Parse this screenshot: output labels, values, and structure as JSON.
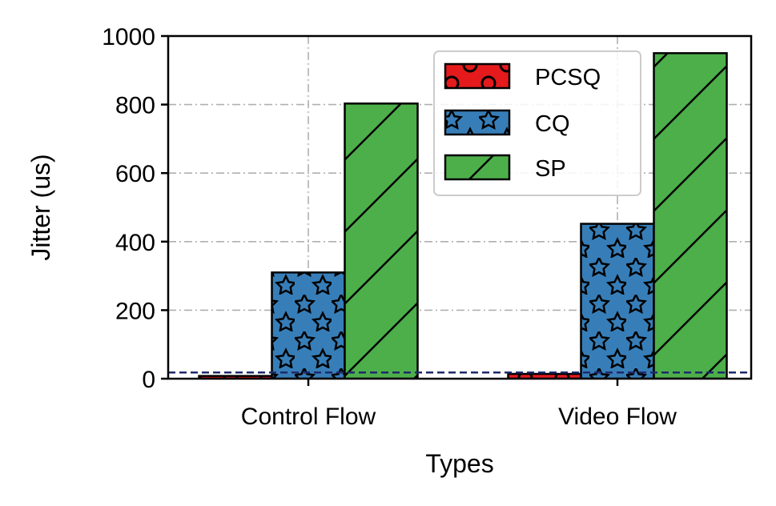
{
  "chart_data": {
    "type": "bar",
    "title": "",
    "xlabel": "Types",
    "ylabel": "Jitter (us)",
    "categories": [
      "Control Flow",
      "Video Flow"
    ],
    "ylim": [
      0,
      1000
    ],
    "yticks": [
      0,
      200,
      400,
      600,
      800,
      1000
    ],
    "grid": true,
    "legend_position": "top-right",
    "reference_line": {
      "value": 18,
      "style": "dashed",
      "color": "#1f2a6b"
    },
    "series": [
      {
        "name": "PCSQ",
        "values": [
          8,
          14
        ],
        "color": "#e41a1c",
        "hatch": "circles"
      },
      {
        "name": "CQ",
        "values": [
          310,
          452
        ],
        "color": "#377eb8",
        "hatch": "stars"
      },
      {
        "name": "SP",
        "values": [
          803,
          950
        ],
        "color": "#4daf4a",
        "hatch": "diagonal"
      }
    ]
  }
}
